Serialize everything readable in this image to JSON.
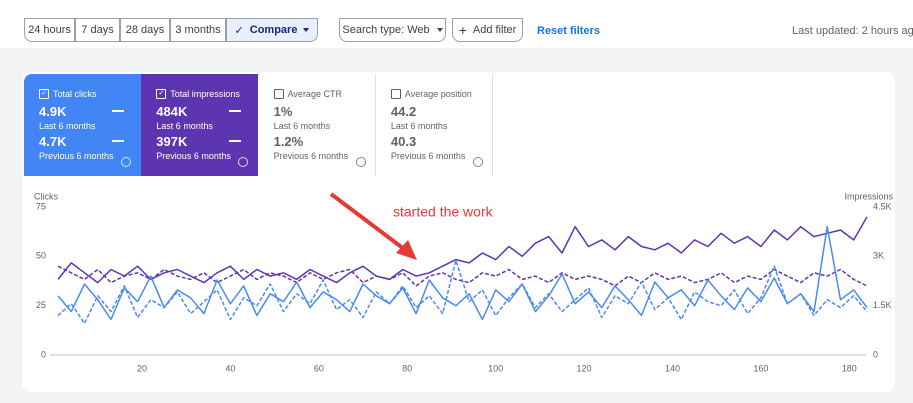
{
  "toolbar": {
    "ranges": [
      "24 hours",
      "7 days",
      "28 days",
      "3 months"
    ],
    "compare": "Compare",
    "search_type": "Search type: Web",
    "add_filter": "Add filter",
    "reset": "Reset filters",
    "updated": "Last updated: 2 hours ag"
  },
  "cards": [
    {
      "label": "Total clicks",
      "current": "4.9K",
      "current_period": "Last 6 months",
      "previous": "4.7K",
      "previous_period": "Previous 6 months",
      "selected": true,
      "color": "#4285f4"
    },
    {
      "label": "Total impressions",
      "current": "484K",
      "current_period": "Last 6 months",
      "previous": "397K",
      "previous_period": "Previous 6 months",
      "selected": true,
      "color": "#5e35b1"
    },
    {
      "label": "Average CTR",
      "current": "1%",
      "current_period": "Last 6 months",
      "previous": "1.2%",
      "previous_period": "Previous 6 months",
      "selected": false,
      "color": "#ffffff"
    },
    {
      "label": "Average position",
      "current": "44.2",
      "current_period": "Last 6 months",
      "previous": "40.3",
      "previous_period": "Previous 6 months",
      "selected": false,
      "color": "#ffffff"
    }
  ],
  "chart_data": {
    "type": "line",
    "ylabel": "Clicks",
    "y2label": "Impressions",
    "annotation": "started  the work",
    "xlim": [
      1,
      184
    ],
    "xticks": [
      20,
      40,
      60,
      80,
      100,
      120,
      140,
      160,
      180
    ],
    "ylim": [
      0,
      75
    ],
    "yticks": [
      0,
      25,
      50,
      75
    ],
    "y2lim": [
      0,
      4500
    ],
    "y2ticks": [
      0,
      {
        "value": 1500,
        "label": "1.5K"
      },
      {
        "value": 3000,
        "label": "3K"
      },
      {
        "value": 4500,
        "label": "4.5K"
      }
    ],
    "grid": false,
    "x": [
      1,
      4,
      7,
      10,
      13,
      16,
      19,
      22,
      25,
      28,
      31,
      34,
      37,
      40,
      43,
      46,
      49,
      52,
      55,
      58,
      61,
      64,
      67,
      70,
      73,
      76,
      79,
      82,
      85,
      88,
      91,
      94,
      97,
      100,
      103,
      106,
      109,
      112,
      115,
      118,
      121,
      124,
      127,
      130,
      133,
      136,
      139,
      142,
      145,
      148,
      151,
      154,
      157,
      160,
      163,
      166,
      169,
      172,
      175,
      178,
      181,
      184
    ],
    "series": [
      {
        "color": "#5e35b1",
        "axis": "y2",
        "dashed": false,
        "values": [
          2300,
          2800,
          2500,
          2200,
          2600,
          2400,
          2700,
          2300,
          2500,
          2600,
          2400,
          2200,
          2500,
          2700,
          2300,
          2600,
          2400,
          2500,
          2300,
          2600,
          2400,
          2200,
          2500,
          2700,
          2400,
          2300,
          2600,
          2400,
          2500,
          2700,
          2900,
          2800,
          3100,
          2900,
          3300,
          3000,
          3400,
          3600,
          3100,
          3900,
          3300,
          3500,
          3200,
          3600,
          3300,
          3200,
          3400,
          3100,
          3500,
          3300,
          3700,
          3400,
          3600,
          3300,
          3800,
          3500,
          3900,
          3600,
          3700,
          3800,
          3500,
          4200
        ]
      },
      {
        "color": "#5e35b1",
        "axis": "y2",
        "dashed": true,
        "values": [
          2700,
          2500,
          2300,
          2600,
          2200,
          2400,
          2500,
          2300,
          2600,
          2400,
          2300,
          2500,
          2200,
          2400,
          2600,
          2300,
          2500,
          2400,
          2200,
          2500,
          2300,
          2500,
          2600,
          2200,
          2400,
          2300,
          2500,
          2100,
          2400,
          2500,
          2300,
          2200,
          2500,
          2400,
          2600,
          2300,
          2400,
          2200,
          2500,
          2300,
          2400,
          2300,
          2100,
          2400,
          2200,
          2500,
          2300,
          2400,
          2200,
          2300,
          2500,
          2200,
          2400,
          2300,
          2600,
          2400,
          2200,
          2500,
          2400,
          2600,
          2300,
          2100
        ]
      },
      {
        "color": "#4a8af4",
        "axis": "y",
        "dashed": false,
        "values": [
          30,
          22,
          36,
          28,
          18,
          34,
          27,
          40,
          24,
          33,
          29,
          21,
          38,
          26,
          35,
          20,
          31,
          27,
          37,
          24,
          32,
          28,
          22,
          36,
          30,
          26,
          34,
          21,
          38,
          29,
          25,
          31,
          18,
          33,
          27,
          36,
          22,
          30,
          41,
          26,
          32,
          24,
          35,
          28,
          20,
          37,
          29,
          33,
          25,
          38,
          30,
          23,
          34,
          27,
          39,
          26,
          31,
          22,
          65,
          28,
          33,
          24
        ]
      },
      {
        "color": "#4a8af4",
        "axis": "y",
        "dashed": true,
        "values": [
          20,
          26,
          16,
          30,
          22,
          35,
          19,
          28,
          24,
          32,
          21,
          27,
          33,
          18,
          29,
          25,
          36,
          22,
          31,
          26,
          38,
          23,
          28,
          19,
          32,
          26,
          35,
          24,
          30,
          21,
          48,
          27,
          33,
          20,
          29,
          36,
          24,
          31,
          22,
          28,
          34,
          19,
          30,
          26,
          37,
          23,
          29,
          18,
          32,
          27,
          25,
          33,
          21,
          29,
          45,
          26,
          31,
          20,
          28,
          24,
          30,
          22
        ]
      }
    ]
  }
}
